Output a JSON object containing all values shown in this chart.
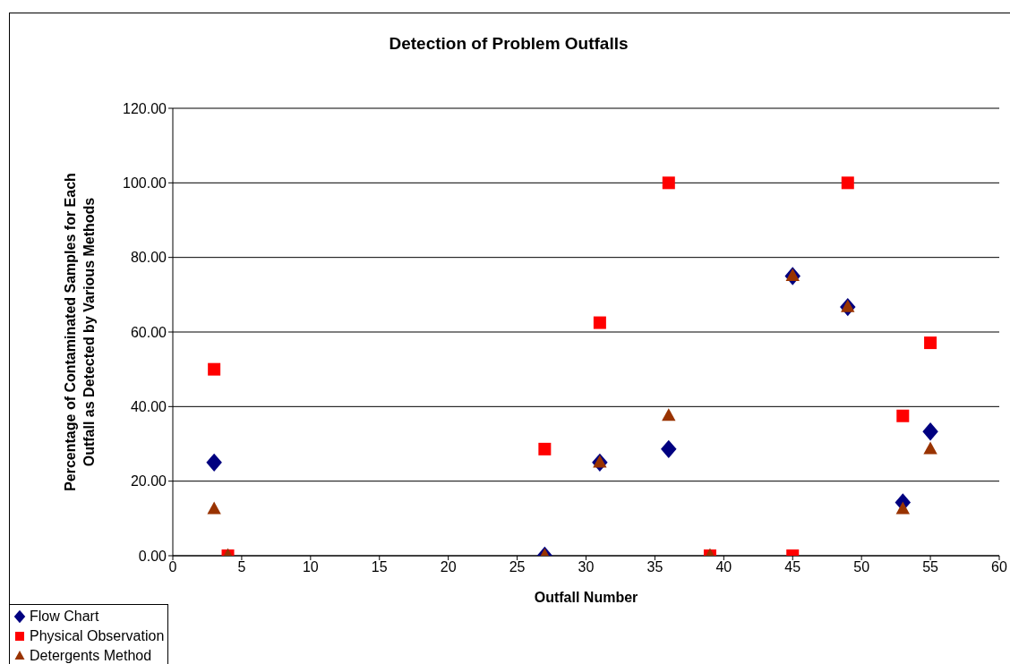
{
  "chart_data": {
    "type": "scatter",
    "title": "Detection of Problem Outfalls",
    "xlabel": "Outfall Number",
    "ylabel": "Percentage of Contaminated Samples for Each Outfall as Detected by Various Methods",
    "series": [
      {
        "name": "Flow Chart",
        "color": "#000080",
        "marker": "diamond",
        "x": [
          3,
          27,
          31,
          36,
          45,
          49,
          53,
          55
        ],
        "values": [
          25,
          0,
          25,
          28.6,
          75,
          66.7,
          14.3,
          33.3
        ]
      },
      {
        "name": "Physical Observation",
        "color": "#ff0000",
        "marker": "square",
        "x": [
          3,
          4,
          27,
          31,
          36,
          39,
          45,
          49,
          53,
          55
        ],
        "values": [
          50,
          0,
          28.6,
          62.5,
          100,
          0,
          0,
          100,
          37.5,
          57.1
        ]
      },
      {
        "name": "Detergents Method",
        "color": "#993300",
        "marker": "triangle",
        "x": [
          3,
          4,
          27,
          31,
          36,
          39,
          45,
          49,
          53,
          55
        ],
        "values": [
          12.5,
          0,
          0,
          25,
          37.5,
          0,
          75,
          66.7,
          12.5,
          28.6
        ]
      }
    ],
    "xlim": [
      0,
      60
    ],
    "xticks": [
      0,
      5,
      10,
      15,
      20,
      25,
      30,
      35,
      40,
      45,
      50,
      55,
      60
    ],
    "ylim": [
      0,
      120
    ],
    "yticks": [
      {
        "value": 0,
        "label": "0.00"
      },
      {
        "value": 20,
        "label": "20.00"
      },
      {
        "value": 40,
        "label": "40.00"
      },
      {
        "value": 60,
        "label": "60.00"
      },
      {
        "value": 80,
        "label": "80.00"
      },
      {
        "value": 100,
        "label": "100.00"
      },
      {
        "value": 120,
        "label": "120.00"
      }
    ],
    "grid": "y",
    "legend": "bottom left"
  }
}
